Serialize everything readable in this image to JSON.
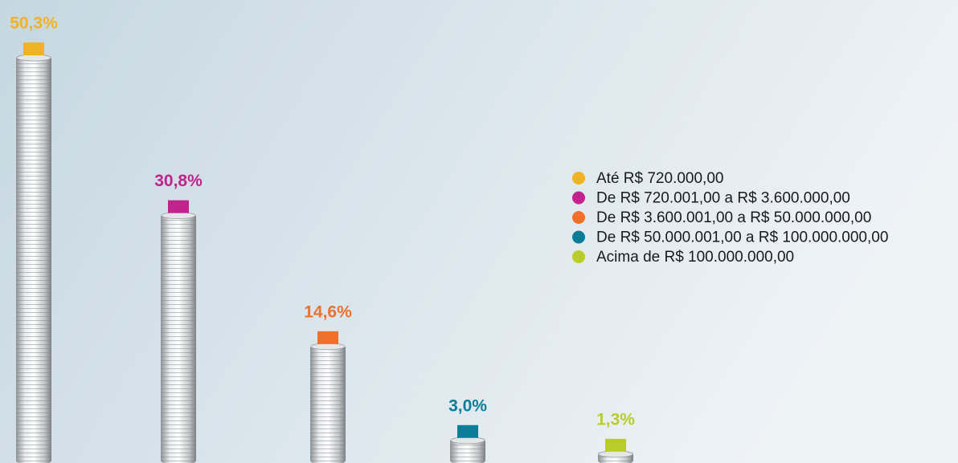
{
  "chart_data": {
    "type": "bar",
    "categories": [
      "Até R$ 720.000,00",
      "De R$ 720.001,00 a R$ 3.600.000,00",
      "De R$ 3.600.001,00 a R$ 50.000.000,00",
      "De R$ 50.000.001,00 a R$ 100.000.000,00",
      "Acima de R$ 100.000.000,00"
    ],
    "values": [
      50.3,
      30.8,
      14.6,
      3.0,
      1.3
    ],
    "value_labels": [
      "50,3%",
      "30,8%",
      "14,6%",
      "3,0%",
      "1,3%"
    ],
    "colors": [
      "#f0b323",
      "#c2228c",
      "#f0702e",
      "#0c7d99",
      "#b9cc2b"
    ],
    "legend": "right"
  }
}
